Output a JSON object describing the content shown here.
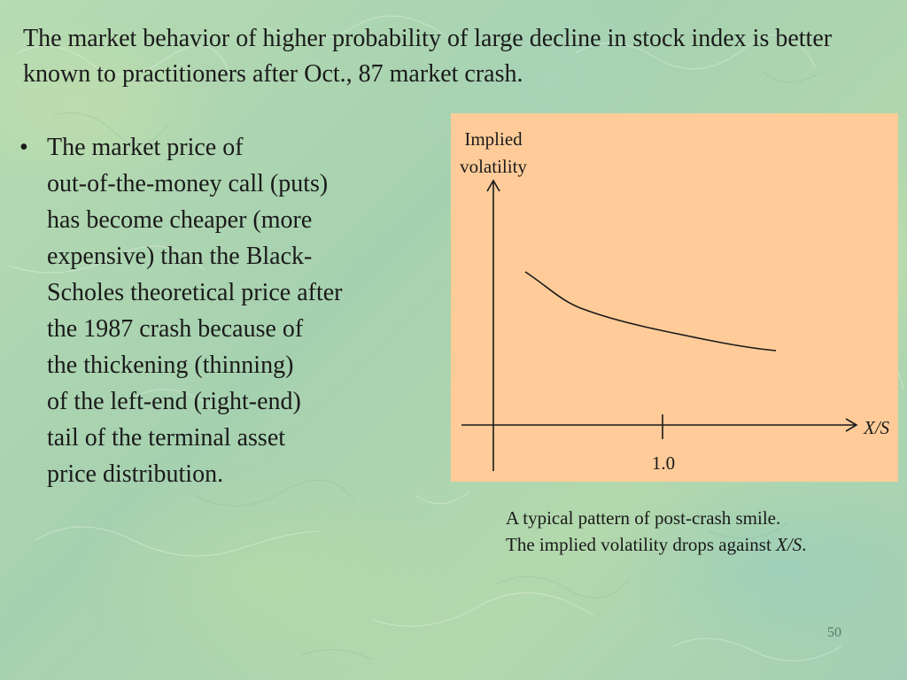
{
  "slide": {
    "title": "The market behavior of higher probability of large decline in stock index is better known to practitioners after Oct., 87 market crash.",
    "bullet": {
      "marker": "•",
      "lines": [
        "The market price of",
        "out-of-the-money call (puts)",
        "has become cheaper (more",
        "expensive) than the Black-",
        "Scholes theoretical price after",
        "the 1987 crash because of",
        "the thickening (thinning)",
        "of the left-end (right-end)",
        "tail of the terminal asset",
        "price distribution."
      ]
    },
    "diagram": {
      "y_label_line1": "Implied",
      "y_label_line2": "volatility",
      "x_label": "X/S",
      "x_tick_label": "1.0",
      "background_color": "#ffcc99"
    },
    "caption": {
      "line1": "A typical pattern of post-crash smile.",
      "line2_prefix": "The implied volatility drops against ",
      "line2_var": "X/S",
      "line2_suffix": "."
    },
    "page_number": "50"
  }
}
